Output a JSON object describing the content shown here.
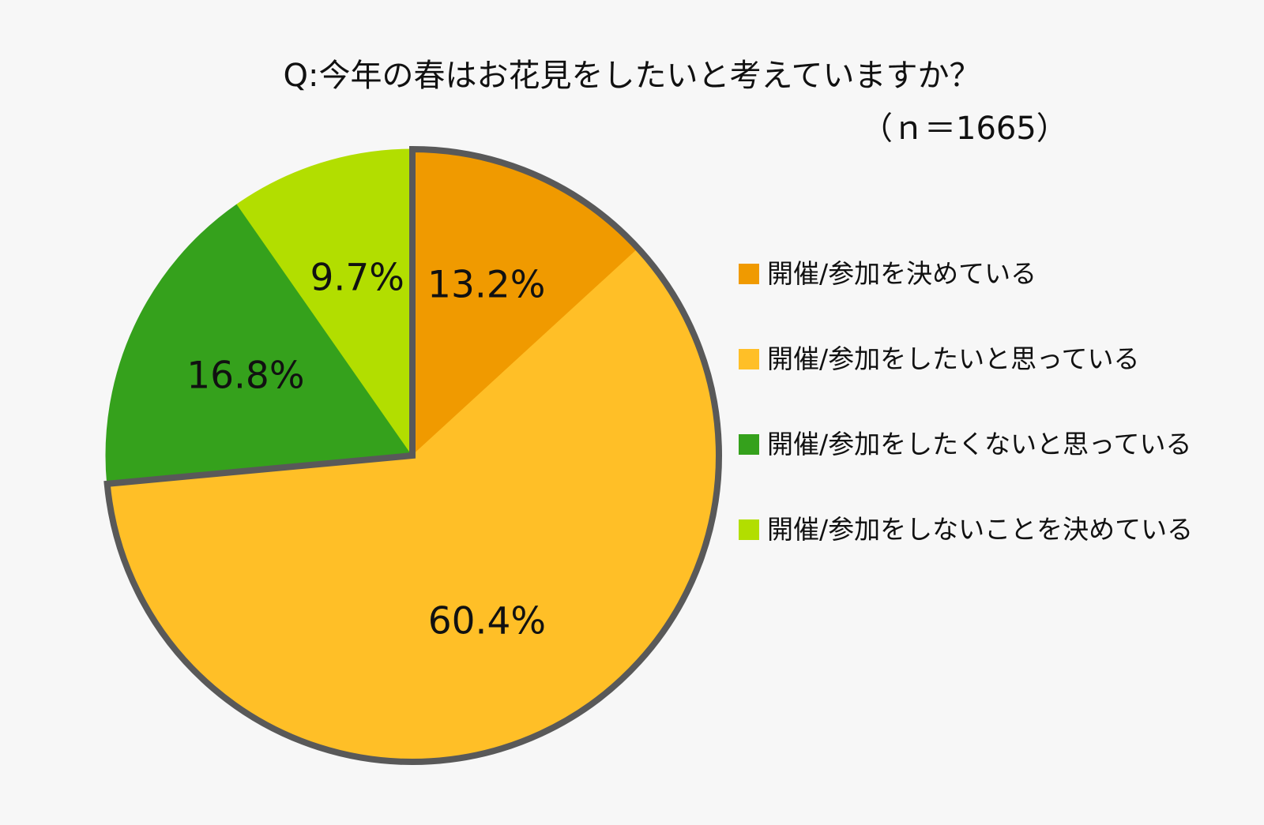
{
  "chart_data": {
    "type": "pie",
    "title": "Q:今年の春はお花見をしたいと考えていますか？",
    "subtitle": "（ｎ＝1665）",
    "slices": [
      {
        "label": "開催/参加を決めている",
        "value": 13.2,
        "display": "13.2%",
        "color": "#f09a00"
      },
      {
        "label": "開催/参加をしたいと思っている",
        "value": 60.4,
        "display": "60.4%",
        "color": "#ffbf27"
      },
      {
        "label": "開催/参加をしたくないと思っている",
        "value": 16.8,
        "display": "16.8%",
        "color": "#35a11c"
      },
      {
        "label": "開催/参加をしないことを決めている",
        "value": 9.7,
        "display": "9.7%",
        "color": "#b2de00"
      }
    ],
    "highlighted_slices": [
      0,
      1
    ],
    "highlight_color": "#595959",
    "legend_placement": "right"
  }
}
